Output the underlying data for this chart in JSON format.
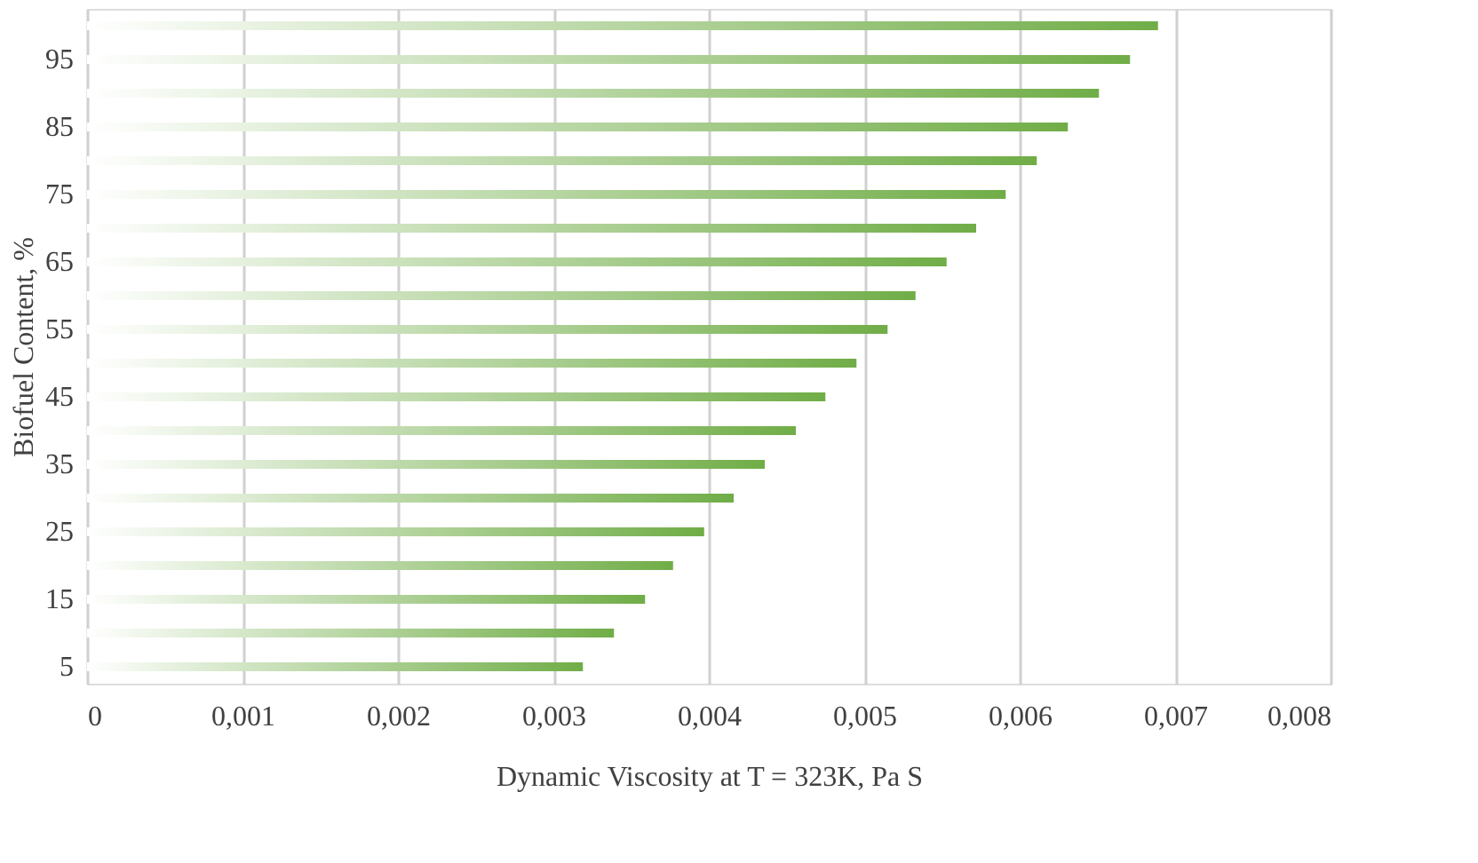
{
  "chart_data": {
    "type": "bar",
    "orientation": "horizontal",
    "xlabel": "Dynamic Viscosity at T = 323K, Pa S",
    "ylabel": "Biofuel Content, %",
    "categories": [
      null,
      "95",
      null,
      "85",
      null,
      "75",
      null,
      "65",
      null,
      "55",
      null,
      "45",
      null,
      "35",
      null,
      "25",
      null,
      "15",
      null,
      "5"
    ],
    "values": [
      0.00689,
      0.00671,
      0.00651,
      0.00631,
      0.00611,
      0.00591,
      0.00572,
      0.00553,
      0.00533,
      0.00515,
      0.00495,
      0.00475,
      0.00456,
      0.00436,
      0.00416,
      0.00397,
      0.00377,
      0.00359,
      0.00339,
      0.00319
    ],
    "color": "#70ad47",
    "xlim": [
      0,
      0.008
    ],
    "xticks": [
      0,
      {
        "value": 0.001,
        "label": "0,001"
      },
      {
        "value": 0.002,
        "label": "0,002"
      },
      {
        "value": 0.003,
        "label": "0,003"
      },
      {
        "value": 0.004,
        "label": "0,004"
      },
      {
        "value": 0.005,
        "label": "0,005"
      },
      {
        "value": 0.006,
        "label": "0,006"
      },
      {
        "value": 0.007,
        "label": "0,007"
      },
      {
        "value": 0.008,
        "label": "0,008"
      }
    ],
    "grid": "x"
  }
}
